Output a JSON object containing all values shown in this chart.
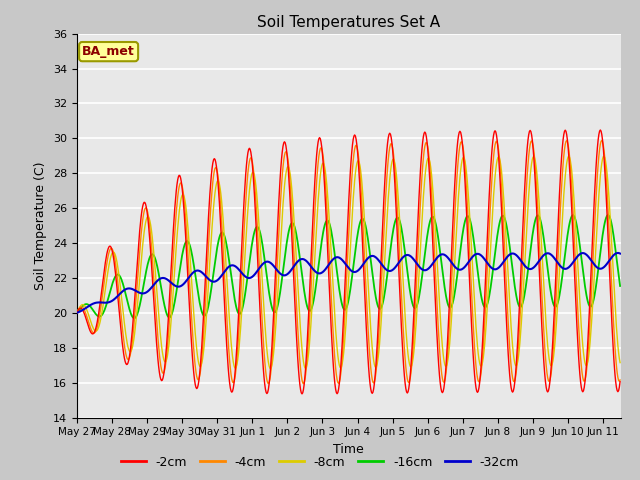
{
  "title": "Soil Temperatures Set A",
  "xlabel": "Time",
  "ylabel": "Soil Temperature (C)",
  "ylim": [
    14,
    36
  ],
  "yticks": [
    14,
    16,
    18,
    20,
    22,
    24,
    26,
    28,
    30,
    32,
    34,
    36
  ],
  "bg_color": "#e8e8e8",
  "plot_bg_color": "#e8e8e8",
  "series_colors": {
    "-2cm": "#ff0000",
    "-4cm": "#ff8800",
    "-8cm": "#ddcc00",
    "-16cm": "#00cc00",
    "-32cm": "#0000cc"
  },
  "tick_labels": [
    "May 27",
    "May 28",
    "May 29",
    "May 30",
    "May 31",
    "Jun 1",
    "Jun 2",
    "Jun 3",
    "Jun 4",
    "Jun 5",
    "Jun 6",
    "Jun 7",
    "Jun 8",
    "Jun 9",
    "Jun 10",
    "Jun 11"
  ],
  "tick_positions": [
    0,
    1,
    2,
    3,
    4,
    5,
    6,
    7,
    8,
    9,
    10,
    11,
    12,
    13,
    14,
    15
  ],
  "legend_label": "BA_met",
  "legend_box_color": "#ffff99",
  "legend_box_border": "#999900"
}
